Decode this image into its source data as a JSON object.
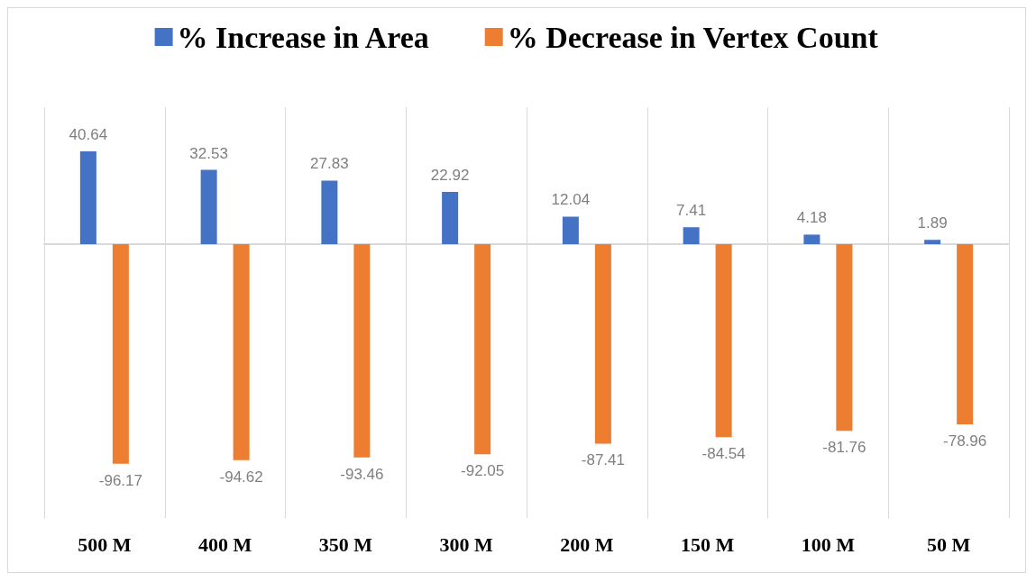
{
  "chart_data": {
    "type": "bar",
    "categories": [
      "500 M",
      "400 M",
      "350 M",
      "300 M",
      "200 M",
      "150 M",
      "100 M",
      "50 M"
    ],
    "series": [
      {
        "name": "% Increase in Area",
        "color": "#4472c4",
        "values": [
          40.64,
          32.53,
          27.83,
          22.92,
          12.04,
          7.41,
          4.18,
          1.89
        ]
      },
      {
        "name": "% Decrease in Vertex Count",
        "color": "#ed7d31",
        "values": [
          -96.17,
          -94.62,
          -93.46,
          -92.05,
          -87.41,
          -84.54,
          -81.76,
          -78.96
        ]
      }
    ],
    "data_labels": true,
    "legend": "top",
    "grid": "x",
    "tick_labels": "x"
  }
}
